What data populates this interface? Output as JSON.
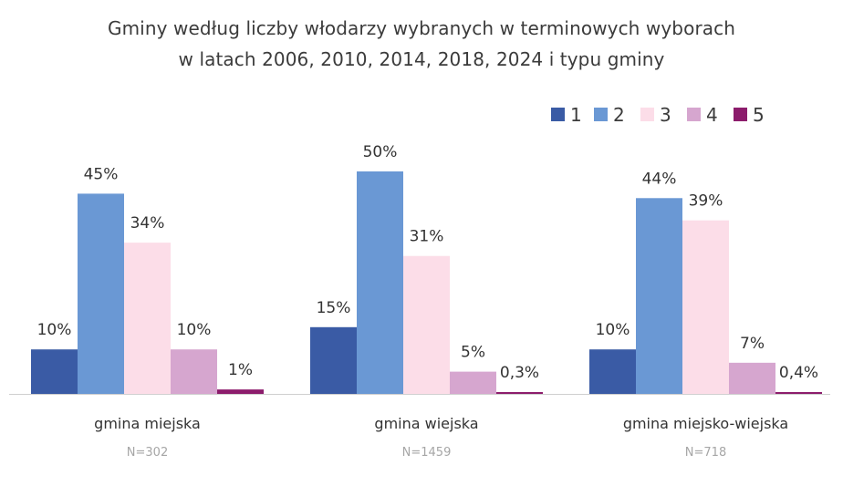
{
  "chart_data": {
    "type": "bar",
    "title_lines": [
      "Gminy według liczby włodarzy wybranych w terminowych wyborach",
      "w latach 2006, 2010, 2014, 2018, 2024 i typu gminy"
    ],
    "categories": [
      "gmina miejska",
      "gmina wiejska",
      "gmina miejsko-wiejska"
    ],
    "sample_sizes": [
      "N=302",
      "N=1459",
      "N=718"
    ],
    "series": [
      {
        "name": "1",
        "color": "#3a5ba5",
        "values": [
          10,
          15,
          10
        ],
        "labels": [
          "10%",
          "15%",
          "10%"
        ]
      },
      {
        "name": "2",
        "color": "#6a98d4",
        "values": [
          45,
          50,
          44
        ],
        "labels": [
          "45%",
          "50%",
          "44%"
        ]
      },
      {
        "name": "3",
        "color": "#fcdde8",
        "values": [
          34,
          31,
          39
        ],
        "labels": [
          "34%",
          "31%",
          "39%"
        ]
      },
      {
        "name": "4",
        "color": "#d6a6cf",
        "values": [
          10,
          5,
          7
        ],
        "labels": [
          "10%",
          "5%",
          "7%"
        ]
      },
      {
        "name": "5",
        "color": "#8c1c6c",
        "values": [
          1,
          0.3,
          0.4
        ],
        "labels": [
          "1%",
          "0,3%",
          "0,4%"
        ]
      }
    ],
    "ylim": [
      0,
      50
    ],
    "xlabel": "",
    "ylabel": "",
    "grid": false,
    "legend_position": "top-right"
  }
}
